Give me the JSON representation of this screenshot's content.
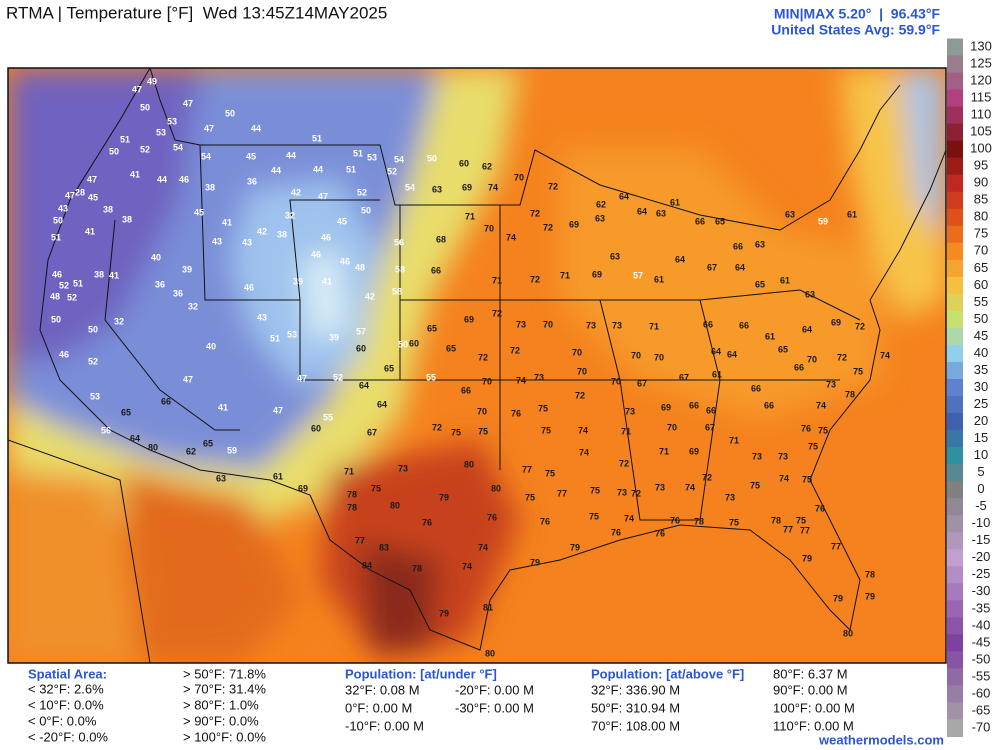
{
  "header": {
    "title": "RTMA | Temperature [°F]  Wed 13:45Z14MAY2025",
    "min_max": "MIN|MAX 5.20°  |  96.43°F",
    "us_average": "United States Avg: 59.9°F"
  },
  "colorbar": {
    "ticks": [
      130,
      125,
      120,
      115,
      110,
      105,
      100,
      95,
      90,
      85,
      80,
      75,
      70,
      65,
      60,
      55,
      50,
      45,
      40,
      35,
      30,
      25,
      20,
      15,
      10,
      5,
      0,
      -5,
      -10,
      -15,
      -20,
      -25,
      -30,
      -35,
      -40,
      -45,
      -50,
      -55,
      -60,
      -65,
      -70
    ]
  },
  "map": {
    "station_values": [
      49,
      47,
      50,
      47,
      50,
      53,
      47,
      51,
      53,
      44,
      50,
      52,
      54,
      51,
      54,
      45,
      44,
      51,
      53,
      54,
      50,
      60,
      62,
      51,
      36,
      44,
      44,
      52,
      54,
      63,
      69,
      74,
      70,
      47,
      28,
      41,
      44,
      46,
      38,
      42,
      47,
      52,
      50,
      45,
      38,
      47,
      43,
      50,
      38,
      45,
      41,
      32,
      45,
      56,
      68,
      71,
      70,
      74,
      72,
      72,
      69,
      72,
      62,
      63,
      64,
      64,
      63,
      61,
      66,
      65,
      66,
      63,
      63,
      59,
      61,
      51,
      41,
      40,
      39,
      43,
      43,
      42,
      38,
      46,
      46,
      46,
      48,
      39,
      41,
      42,
      58,
      58,
      46,
      51,
      52,
      48,
      52,
      38,
      41,
      36,
      36,
      32,
      46,
      66,
      71,
      72,
      71,
      69,
      63,
      57,
      61,
      64,
      67,
      64,
      65,
      61,
      63,
      50,
      32,
      50,
      43,
      53,
      51,
      39,
      57,
      50,
      65,
      69,
      72,
      73,
      70,
      73,
      73,
      71,
      66,
      66,
      61,
      64,
      69,
      72,
      46,
      52,
      40,
      60,
      60,
      65,
      72,
      72,
      70,
      70,
      70,
      64,
      64,
      65,
      70,
      72,
      74,
      53,
      66,
      47,
      47,
      52,
      64,
      65,
      55,
      66,
      70,
      74,
      73,
      70,
      70,
      67,
      67,
      61,
      66,
      66,
      73,
      75,
      65,
      41,
      47,
      55,
      64,
      72,
      70,
      76,
      75,
      72,
      73,
      69,
      66,
      66,
      66,
      74,
      78,
      56,
      64,
      80,
      60,
      67,
      75,
      75,
      75,
      74,
      71,
      70,
      67,
      71,
      76,
      75,
      62,
      65,
      59,
      74,
      72,
      71,
      69,
      73,
      73,
      75,
      63,
      71,
      73,
      80,
      77,
      75,
      72,
      73,
      74,
      72,
      73,
      75,
      74,
      75,
      61,
      69,
      78,
      75,
      79,
      80,
      77,
      75,
      73,
      78,
      80,
      76,
      76,
      75,
      76,
      75,
      74,
      76,
      78,
      75,
      78,
      75,
      76,
      77,
      83,
      74,
      79,
      79,
      76,
      76,
      77,
      77,
      79,
      77,
      84,
      78,
      74,
      78,
      81,
      79,
      79,
      79,
      80,
      80
    ]
  },
  "footer": {
    "spatial_area": {
      "heading": "Spatial Area:",
      "below": [
        "< 32°F: 2.6%",
        "< 10°F: 0.0%",
        "< 0°F: 0.0%",
        "< -20°F: 0.0%"
      ],
      "above": [
        "> 50°F: 71.8%",
        "> 70°F: 31.4%",
        "> 80°F: 1.0%",
        "> 90°F: 0.0%",
        "> 100°F: 0.0%"
      ]
    },
    "population_under": {
      "heading": "Population: [at/under °F]",
      "items": [
        "32°F: 0.08 M",
        "0°F: 0.00 M",
        "-10°F: 0.00 M",
        "-20°F: 0.00 M",
        "-30°F: 0.00 M"
      ]
    },
    "population_above": {
      "heading": "Population: [at/above °F]",
      "items": [
        "32°F: 336.90 M",
        "50°F: 310.94 M",
        "70°F: 108.00 M",
        "80°F: 6.37 M",
        "90°F: 0.00 M",
        "100°F: 0.00 M",
        "110°F: 0.00 M"
      ]
    },
    "credit": "weathermodels.com"
  }
}
